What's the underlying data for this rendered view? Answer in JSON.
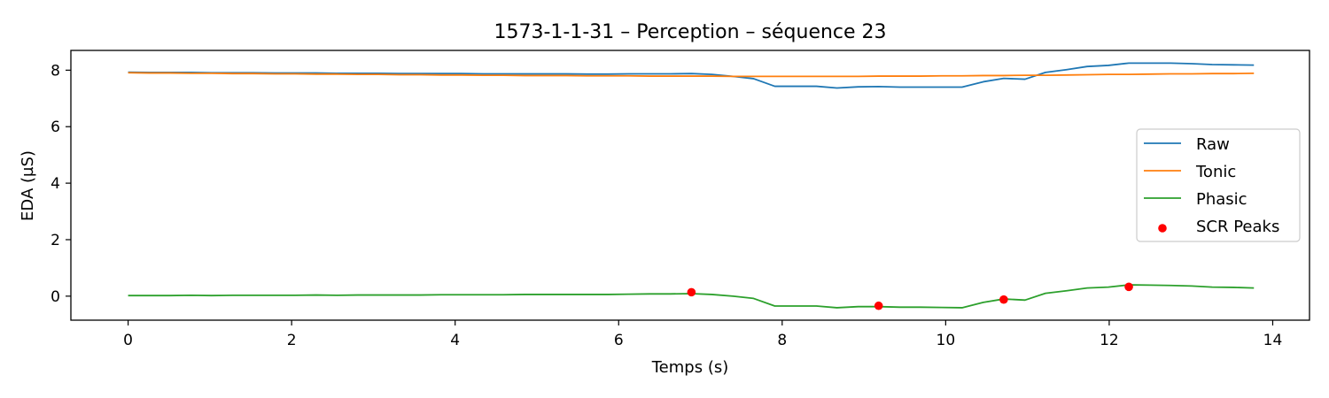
{
  "chart_data": {
    "type": "line",
    "title": "1573-1-1-31 – Perception – séquence 23",
    "xlabel": "Temps (s)",
    "ylabel": "EDA (µS)",
    "xlim": [
      -0.7,
      14.45
    ],
    "ylim": [
      -0.85,
      8.7
    ],
    "xticks": [
      0,
      2,
      4,
      6,
      8,
      10,
      12,
      14
    ],
    "yticks": [
      0,
      2,
      4,
      6,
      8
    ],
    "grid": false,
    "legend_position": "center-right",
    "colors": {
      "raw": "#1f77b4",
      "tonic": "#ff7f0e",
      "phasic": "#2ca02c",
      "peaks": "#ff0000"
    },
    "x": [
      0,
      0.26,
      0.51,
      0.77,
      1.02,
      1.28,
      1.53,
      1.79,
      2.04,
      2.3,
      2.55,
      2.81,
      3.06,
      3.32,
      3.57,
      3.83,
      4.08,
      4.34,
      4.59,
      4.85,
      5.1,
      5.36,
      5.61,
      5.87,
      6.12,
      6.38,
      6.63,
      6.89,
      7.14,
      7.4,
      7.65,
      7.91,
      8.16,
      8.42,
      8.67,
      8.93,
      9.18,
      9.44,
      9.69,
      9.95,
      10.2,
      10.46,
      10.71,
      10.97,
      11.22,
      11.48,
      11.73,
      11.99,
      12.24,
      12.5,
      12.75,
      13.01,
      13.26,
      13.52,
      13.77
    ],
    "series": [
      {
        "name": "Raw",
        "values": [
          7.93,
          7.92,
          7.92,
          7.92,
          7.91,
          7.91,
          7.91,
          7.9,
          7.9,
          7.9,
          7.89,
          7.89,
          7.89,
          7.88,
          7.88,
          7.88,
          7.88,
          7.87,
          7.87,
          7.87,
          7.87,
          7.87,
          7.86,
          7.86,
          7.87,
          7.87,
          7.87,
          7.88,
          7.85,
          7.78,
          7.7,
          7.43,
          7.43,
          7.43,
          7.37,
          7.41,
          7.42,
          7.4,
          7.4,
          7.4,
          7.4,
          7.59,
          7.71,
          7.68,
          7.92,
          8.02,
          8.13,
          8.17,
          8.25,
          8.25,
          8.25,
          8.23,
          8.2,
          8.19,
          8.18
        ]
      },
      {
        "name": "Tonic",
        "values": [
          7.91,
          7.9,
          7.9,
          7.89,
          7.89,
          7.88,
          7.88,
          7.87,
          7.87,
          7.86,
          7.86,
          7.85,
          7.85,
          7.84,
          7.84,
          7.83,
          7.83,
          7.82,
          7.82,
          7.81,
          7.81,
          7.81,
          7.8,
          7.8,
          7.8,
          7.79,
          7.79,
          7.79,
          7.79,
          7.78,
          7.78,
          7.78,
          7.78,
          7.78,
          7.78,
          7.78,
          7.79,
          7.79,
          7.79,
          7.8,
          7.8,
          7.81,
          7.81,
          7.82,
          7.82,
          7.83,
          7.84,
          7.85,
          7.85,
          7.86,
          7.87,
          7.87,
          7.88,
          7.88,
          7.89
        ]
      },
      {
        "name": "Phasic",
        "values": [
          0.02,
          0.02,
          0.02,
          0.03,
          0.02,
          0.03,
          0.03,
          0.03,
          0.03,
          0.04,
          0.03,
          0.04,
          0.04,
          0.04,
          0.04,
          0.05,
          0.05,
          0.05,
          0.05,
          0.06,
          0.06,
          0.06,
          0.06,
          0.06,
          0.07,
          0.08,
          0.08,
          0.09,
          0.06,
          0.0,
          -0.08,
          -0.35,
          -0.35,
          -0.35,
          -0.41,
          -0.37,
          -0.37,
          -0.39,
          -0.39,
          -0.4,
          -0.41,
          -0.22,
          -0.1,
          -0.14,
          0.1,
          0.19,
          0.29,
          0.32,
          0.4,
          0.39,
          0.38,
          0.36,
          0.32,
          0.31,
          0.29
        ]
      },
      {
        "name": "SCR Peaks",
        "type": "scatter",
        "x": [
          6.89,
          9.18,
          10.71,
          12.24
        ],
        "values": [
          0.14,
          -0.34,
          -0.12,
          0.33
        ]
      }
    ]
  }
}
